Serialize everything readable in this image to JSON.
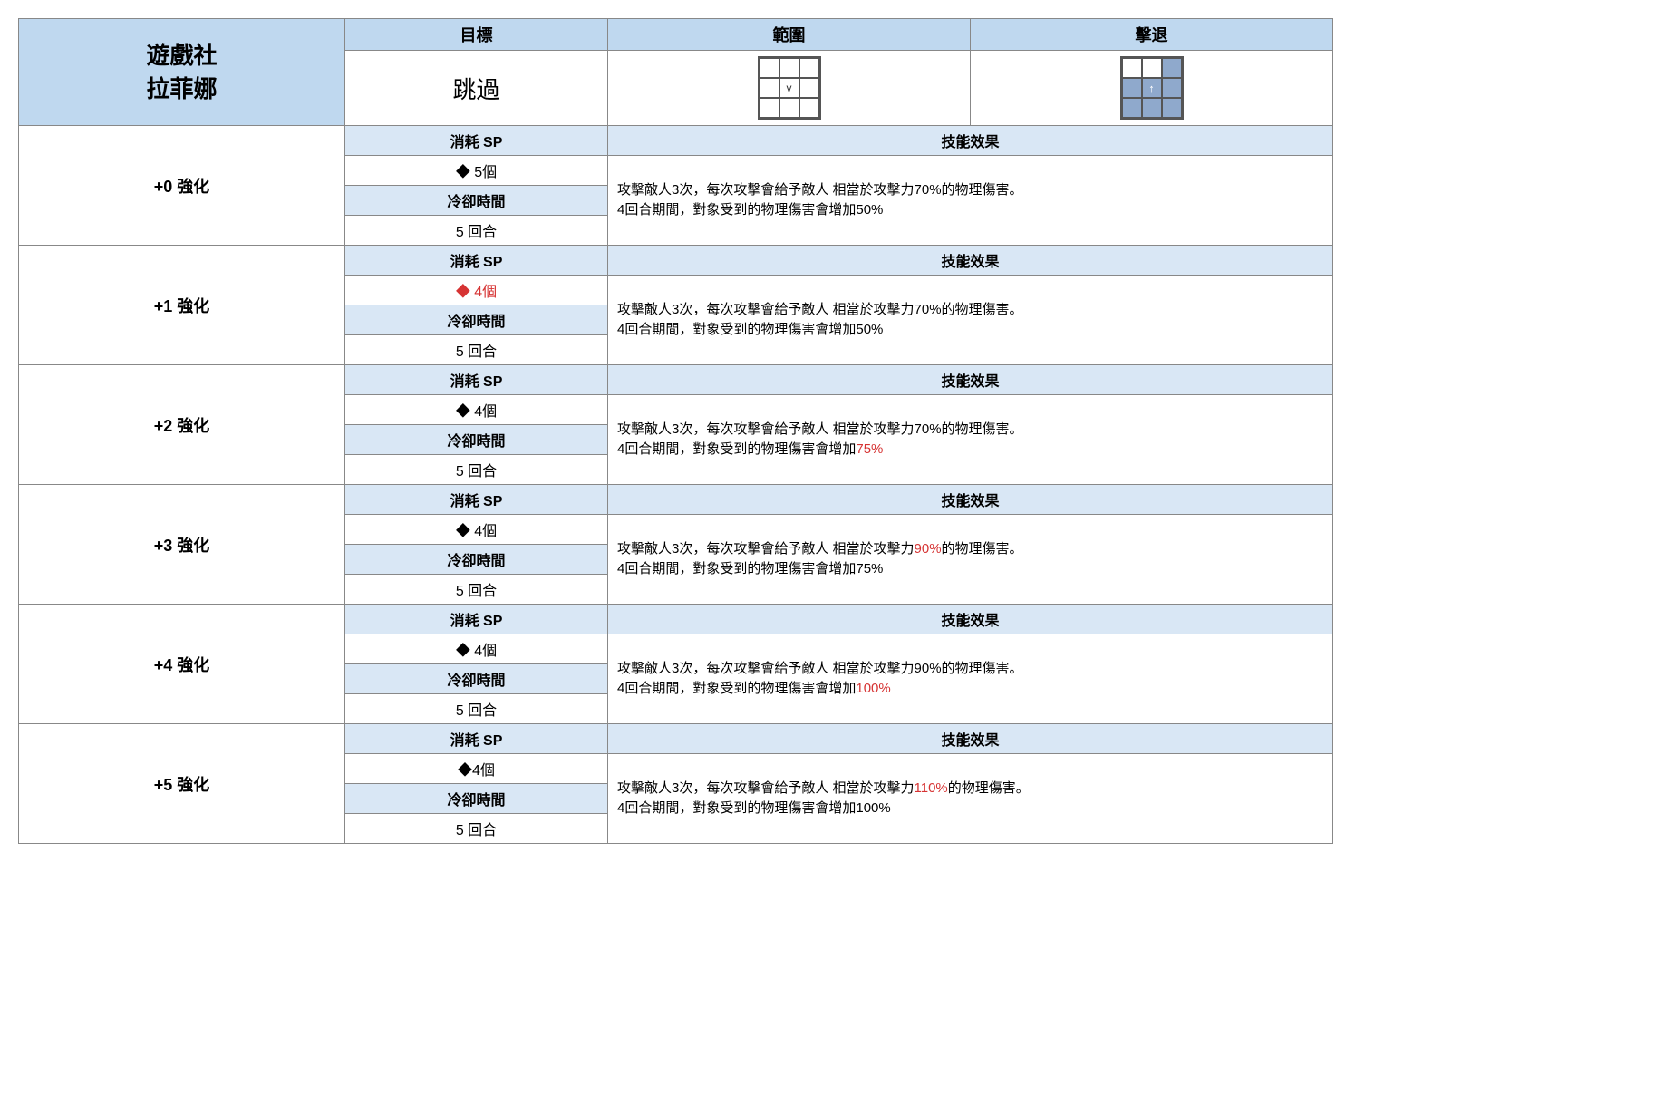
{
  "title_line1": "遊戲社",
  "title_line2": "拉菲娜",
  "headers": {
    "target": "目標",
    "range": "範圍",
    "knockback": "擊退"
  },
  "skill_name": "跳過",
  "range_grid": {
    "rows": [
      [
        "",
        "",
        ""
      ],
      [
        "",
        "v",
        ""
      ],
      [
        "",
        "",
        ""
      ]
    ],
    "fill": [
      [
        false,
        false,
        false
      ],
      [
        false,
        false,
        false
      ],
      [
        false,
        false,
        false
      ]
    ],
    "mark_color": "#333333"
  },
  "knockback_grid": {
    "rows": [
      [
        "",
        "",
        ""
      ],
      [
        "",
        "↑",
        ""
      ],
      [
        "",
        "",
        ""
      ]
    ],
    "fill": [
      [
        false,
        false,
        true
      ],
      [
        true,
        true,
        true
      ],
      [
        true,
        true,
        true
      ]
    ],
    "arrow_color": "#ffffff"
  },
  "row_labels": {
    "sp": "消耗 SP",
    "cooldown": "冷卻時間",
    "effect": "技能效果"
  },
  "levels": [
    {
      "label": "+0 強化",
      "sp": "◆ 5個",
      "sp_red": false,
      "cooldown": "5 回合",
      "effect_parts": [
        {
          "t": "攻擊敵人3次，每次攻擊會給予敵人 相當於攻擊力"
        },
        {
          "t": "70%",
          "red": false
        },
        {
          "t": "的物理傷害。"
        },
        {
          "br": true
        },
        {
          "t": "4回合期間，對象受到的物理傷害會增加"
        },
        {
          "t": "50%",
          "red": false
        }
      ]
    },
    {
      "label": "+1 強化",
      "sp": "◆ 4個",
      "sp_red": true,
      "cooldown": "5 回合",
      "effect_parts": [
        {
          "t": "攻擊敵人3次，每次攻擊會給予敵人 相當於攻擊力"
        },
        {
          "t": "70%",
          "red": false
        },
        {
          "t": "的物理傷害。"
        },
        {
          "br": true
        },
        {
          "t": "4回合期間，對象受到的物理傷害會增加"
        },
        {
          "t": "50%",
          "red": false
        }
      ]
    },
    {
      "label": "+2 強化",
      "sp": "◆ 4個",
      "sp_red": false,
      "cooldown": "5 回合",
      "effect_parts": [
        {
          "t": "攻擊敵人3次，每次攻擊會給予敵人 相當於攻擊力"
        },
        {
          "t": "70%",
          "red": false
        },
        {
          "t": "的物理傷害。"
        },
        {
          "br": true
        },
        {
          "t": "4回合期間，對象受到的物理傷害會增加"
        },
        {
          "t": "75%",
          "red": true
        }
      ]
    },
    {
      "label": "+3 強化",
      "sp": "◆ 4個",
      "sp_red": false,
      "cooldown": "5 回合",
      "effect_parts": [
        {
          "t": "攻擊敵人3次，每次攻擊會給予敵人 相當於攻擊力"
        },
        {
          "t": "90%",
          "red": true
        },
        {
          "t": "的物理傷害。"
        },
        {
          "br": true
        },
        {
          "t": "4回合期間，對象受到的物理傷害會增加"
        },
        {
          "t": "75%",
          "red": false
        }
      ]
    },
    {
      "label": "+4 強化",
      "sp": "◆ 4個",
      "sp_red": false,
      "cooldown": "5 回合",
      "effect_parts": [
        {
          "t": "攻擊敵人3次，每次攻擊會給予敵人 相當於攻擊力"
        },
        {
          "t": "90%",
          "red": false
        },
        {
          "t": "的物理傷害。"
        },
        {
          "br": true
        },
        {
          "t": "4回合期間，對象受到的物理傷害會增加"
        },
        {
          "t": "100%",
          "red": true
        }
      ]
    },
    {
      "label": "+5 強化",
      "sp": "◆4個",
      "sp_red": false,
      "cooldown": "5 回合",
      "effect_parts": [
        {
          "t": "攻擊敵人3次，每次攻擊會給予敵人 相當於攻擊力"
        },
        {
          "t": "110%",
          "red": true
        },
        {
          "t": "的物理傷害。"
        },
        {
          "br": true
        },
        {
          "t": "4回合期間，對象受到的物理傷害會增加"
        },
        {
          "t": "100%",
          "red": false
        }
      ]
    }
  ],
  "colors": {
    "header_blue": "#bfd8ef",
    "subheader_blue": "#d9e7f5",
    "border": "#888888",
    "highlight_red": "#d63333",
    "grid_fill": "#8fa9cc"
  }
}
